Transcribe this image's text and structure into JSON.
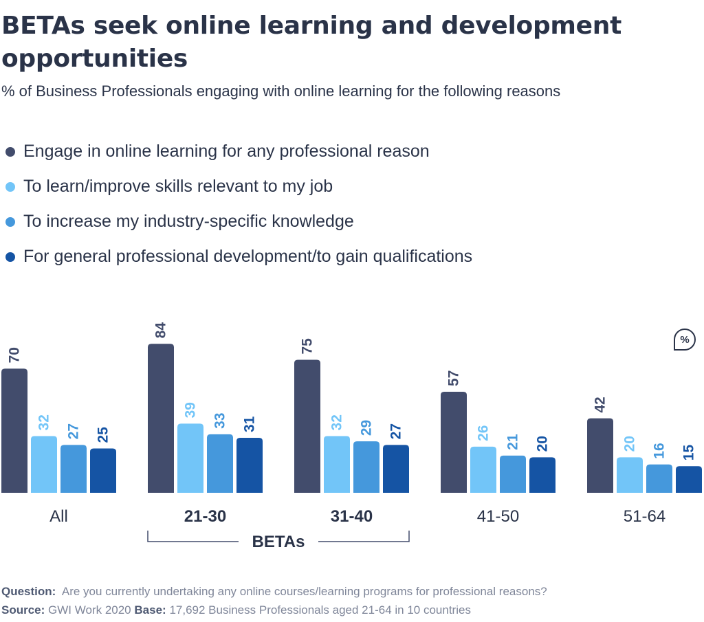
{
  "title": "BETAs seek online learning and development opportunities",
  "subtitle": "% of Business Professionals engaging with online learning for the following reasons",
  "badge_icon": "percent-icon",
  "badge_text": "%",
  "colors": {
    "text": "#2a3348",
    "muted": "#7f8699",
    "series": [
      "#424c6c",
      "#72c5f8",
      "#4598dc",
      "#1554a4"
    ]
  },
  "chart_data": {
    "type": "bar",
    "categories": [
      "All",
      "21-30",
      "31-40",
      "41-50",
      "51-64"
    ],
    "bold_categories": [
      "21-30",
      "31-40"
    ],
    "group_label": "BETAs",
    "group_categories": [
      "21-30",
      "31-40"
    ],
    "series": [
      {
        "name": "Engage in online learning for any professional reason",
        "values": [
          70,
          84,
          75,
          57,
          42
        ]
      },
      {
        "name": "To learn/improve skills relevant to my job",
        "values": [
          32,
          39,
          32,
          26,
          20
        ]
      },
      {
        "name": "To increase my industry-specific knowledge",
        "values": [
          27,
          33,
          29,
          21,
          16
        ]
      },
      {
        "name": "For general professional development/to gain qualifications",
        "values": [
          25,
          31,
          27,
          20,
          15
        ]
      }
    ],
    "ylim": [
      0,
      100
    ],
    "grid": false,
    "legend_position": "top-left",
    "data_labels": true
  },
  "footer": {
    "question_label": "Question:",
    "question_text": "Are you currently undertaking any online courses/learning programs for professional reasons?",
    "source_label": "Source:",
    "source_text": "GWI Work 2020",
    "base_label": "Base:",
    "base_text": "17,692 Business Professionals aged 21-64 in 10 countries"
  }
}
